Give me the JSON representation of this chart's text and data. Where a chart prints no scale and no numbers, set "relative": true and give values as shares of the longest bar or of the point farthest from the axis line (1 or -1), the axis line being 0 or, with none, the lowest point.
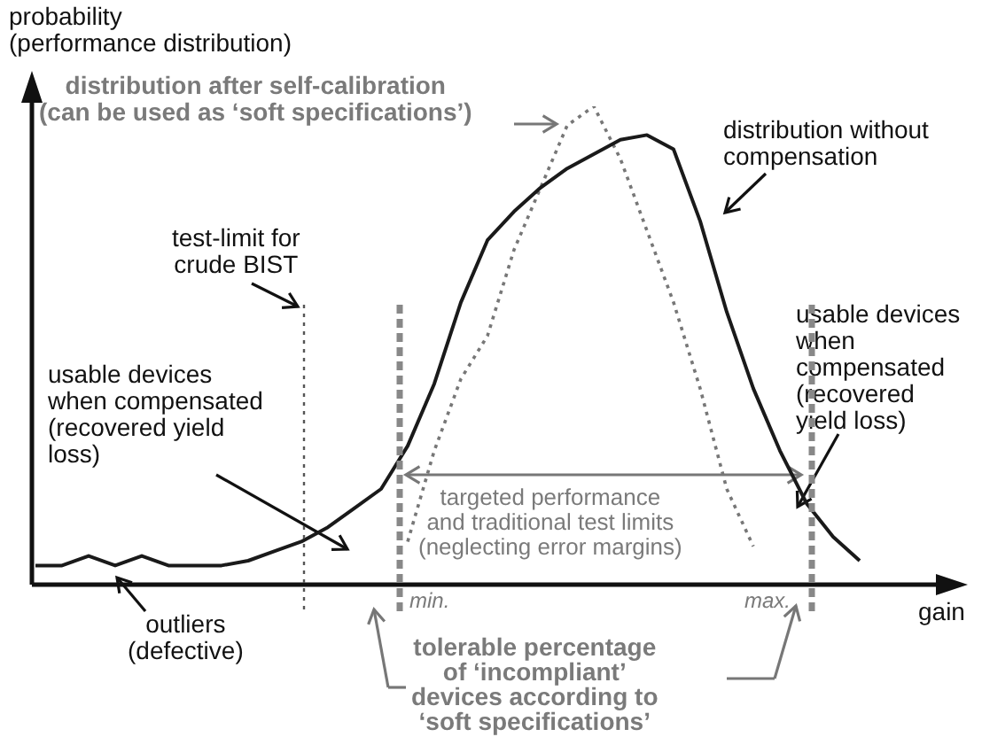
{
  "chart_data": {
    "type": "line",
    "relative": true,
    "xlabel": "gain",
    "ylabel": "probability\n(performance distribution)",
    "categories": [
      null,
      null,
      null,
      null,
      null,
      null,
      null,
      null,
      null,
      null,
      null,
      null,
      null,
      null,
      null,
      null,
      null,
      null,
      null,
      null,
      null,
      null,
      null,
      null,
      null,
      null,
      null,
      null,
      null,
      null,
      null,
      null,
      null
    ],
    "series": [
      {
        "color": "#1a1a1a",
        "line_style": "solid",
        "values": [
          0.04,
          0.04,
          0.06,
          0.04,
          0.06,
          0.04,
          0.04,
          0.04,
          0.05,
          0.07,
          0.09,
          0.12,
          0.16,
          0.2,
          0.29,
          0.42,
          0.59,
          0.72,
          0.78,
          0.83,
          0.87,
          0.9,
          0.93,
          0.94,
          0.91,
          0.76,
          0.57,
          0.41,
          0.28,
          0.17,
          0.1,
          0.05,
          null
        ]
      },
      {
        "color": "#777777",
        "line_style": "dotted",
        "values": [
          null,
          null,
          null,
          null,
          null,
          null,
          null,
          null,
          null,
          null,
          null,
          null,
          null,
          null,
          0.09,
          0.28,
          0.43,
          0.52,
          0.7,
          0.83,
          0.96,
          1,
          0.89,
          0.74,
          0.59,
          0.41,
          0.2,
          0.08,
          null,
          null,
          null,
          null,
          null
        ]
      }
    ],
    "annotations": [
      "distribution after self-calibration\n(can be used as ‘soft specifications’)",
      "distribution without\ncompensation",
      "test-limit for\ncrude BIST",
      "usable devices\nwhen compensated\n(recovered yield\nloss)",
      "usable devices\nwhen\ncompensated\n(recovered\nyield loss)",
      "targeted performance\nand traditional test limits\n(neglecting error margins)",
      "outliers\n(defective)",
      "min.",
      "max.",
      "tolerable percentage\nof ‘incompliant’\ndevices according to\n‘soft specifications’"
    ],
    "legend": false
  }
}
